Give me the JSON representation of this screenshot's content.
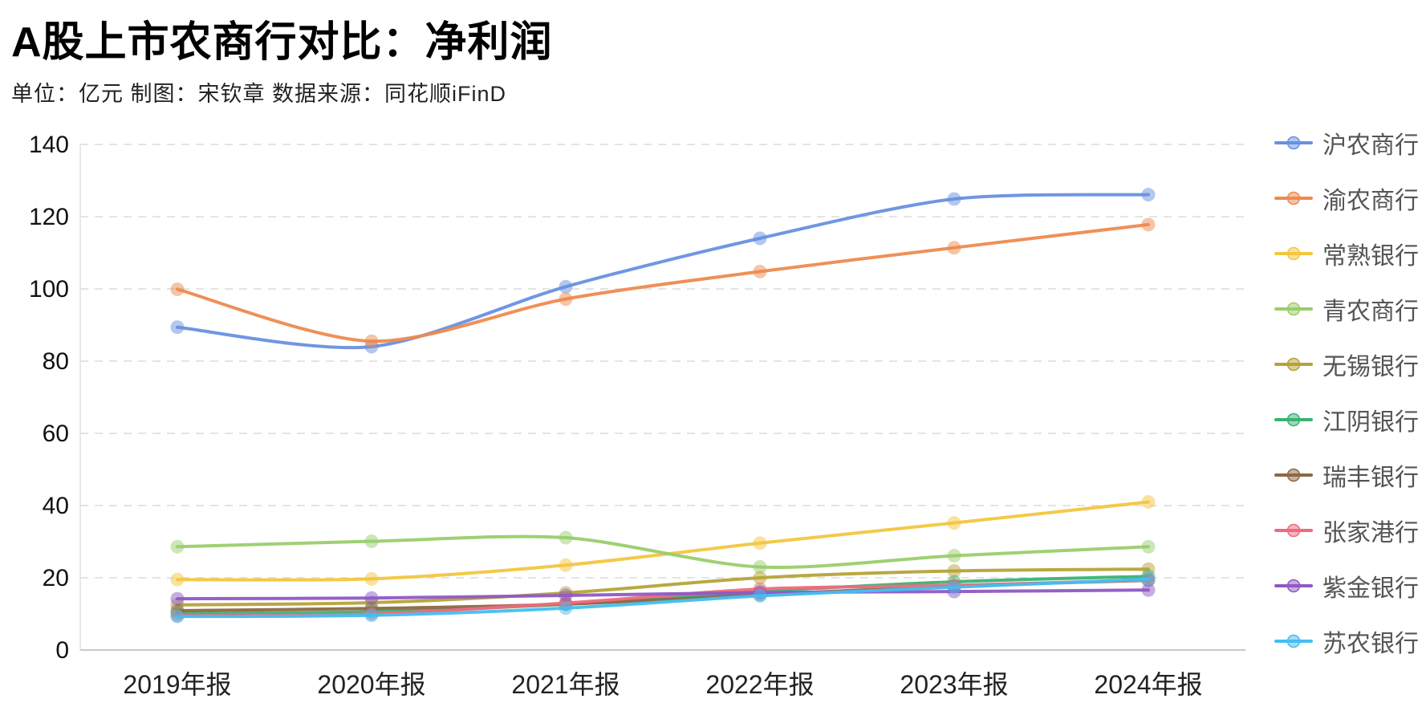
{
  "header": {
    "title": "A股上市农商行对比：净利润",
    "subtitle": "单位：亿元   制图：宋钦章   数据来源：同花顺iFinD"
  },
  "chart_data": {
    "type": "line",
    "title": "A股上市农商行对比：净利润",
    "subtitle": "单位：亿元   制图：宋钦章   数据来源：同花顺iFinD",
    "unit": "亿元",
    "categories": [
      "2019年报",
      "2020年报",
      "2021年报",
      "2022年报",
      "2023年报",
      "2024年报"
    ],
    "series": [
      {
        "name": "沪农商行",
        "color": "#6890E2",
        "values": [
          89.4,
          84.0,
          100.6,
          114.0,
          124.9,
          126.1
        ]
      },
      {
        "name": "渝农商行",
        "color": "#EE8A4E",
        "values": [
          99.9,
          85.5,
          97.2,
          104.8,
          111.4,
          117.8
        ]
      },
      {
        "name": "常熟银行",
        "color": "#F3C63F",
        "values": [
          19.5,
          19.7,
          23.5,
          29.6,
          35.2,
          41.0
        ]
      },
      {
        "name": "青农商行",
        "color": "#9ACD6B",
        "values": [
          28.6,
          30.1,
          31.1,
          23.0,
          26.1,
          28.6
        ]
      },
      {
        "name": "无锡银行",
        "color": "#B5A338",
        "values": [
          12.5,
          13.1,
          15.8,
          20.0,
          21.9,
          22.4
        ]
      },
      {
        "name": "江阴银行",
        "color": "#3BB273",
        "values": [
          10.1,
          10.6,
          12.7,
          16.2,
          18.9,
          20.4
        ]
      },
      {
        "name": "瑞丰银行",
        "color": "#8C6843",
        "values": [
          10.9,
          11.5,
          12.7,
          15.3,
          17.7,
          19.3
        ]
      },
      {
        "name": "张家港行",
        "color": "#EF6A7E",
        "values": [
          9.5,
          10.0,
          13.0,
          16.9,
          17.9,
          19.4
        ]
      },
      {
        "name": "紫金银行",
        "color": "#9059C4",
        "values": [
          14.2,
          14.4,
          15.1,
          15.9,
          16.2,
          16.6
        ]
      },
      {
        "name": "苏农银行",
        "color": "#44BEF1",
        "values": [
          9.3,
          9.6,
          11.6,
          15.0,
          17.4,
          19.6
        ]
      }
    ],
    "ylim": [
      0,
      140
    ],
    "y_ticks": [
      0,
      20,
      40,
      60,
      80,
      100,
      120,
      140
    ],
    "xlabel": "",
    "ylabel": "",
    "grid": "horizontal-dashed",
    "legend_position": "right",
    "smooth": true
  }
}
